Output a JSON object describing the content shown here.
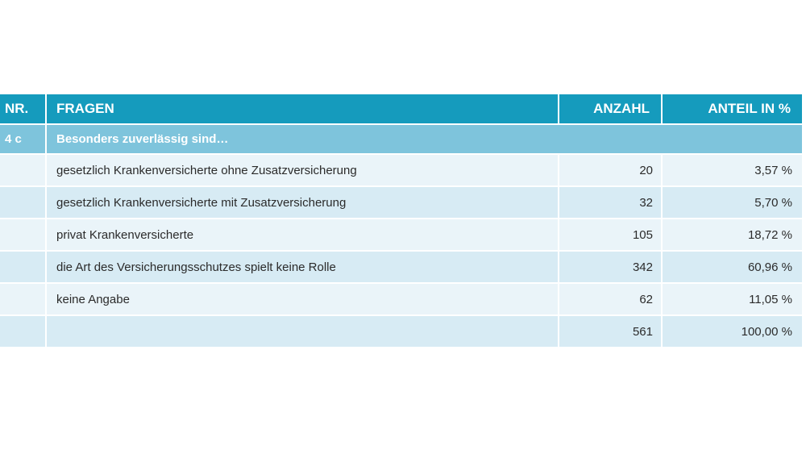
{
  "table": {
    "headers": {
      "nr": "NR.",
      "fragen": "FRAGEN",
      "anzahl": "ANZAHL",
      "anteil": "ANTEIL IN %"
    },
    "section": {
      "nr": "4 c",
      "title": "Besonders zuverlässig sind…"
    },
    "rows": [
      {
        "nr": "",
        "frage": "gesetzlich Krankenversicherte ohne Zusatzversicherung",
        "anzahl": "20",
        "anteil": "3,57 %"
      },
      {
        "nr": "",
        "frage": "gesetzlich Krankenversicherte mit Zusatzversicherung",
        "anzahl": "32",
        "anteil": "5,70 %"
      },
      {
        "nr": "",
        "frage": "privat Krankenversicherte",
        "anzahl": "105",
        "anteil": "18,72 %"
      },
      {
        "nr": "",
        "frage": "die Art des Versicherungsschutzes spielt keine Rolle",
        "anzahl": "342",
        "anteil": "60,96 %"
      },
      {
        "nr": "",
        "frage": "keine Angabe",
        "anzahl": "62",
        "anteil": "11,05 %"
      },
      {
        "nr": "",
        "frage": "",
        "anzahl": "561",
        "anteil": "100,00 %"
      }
    ]
  },
  "colors": {
    "header_bg": "#159bbd",
    "section_bg": "#7ec4dc",
    "row_light": "#eaf4f9",
    "row_dark": "#d7ebf4"
  }
}
